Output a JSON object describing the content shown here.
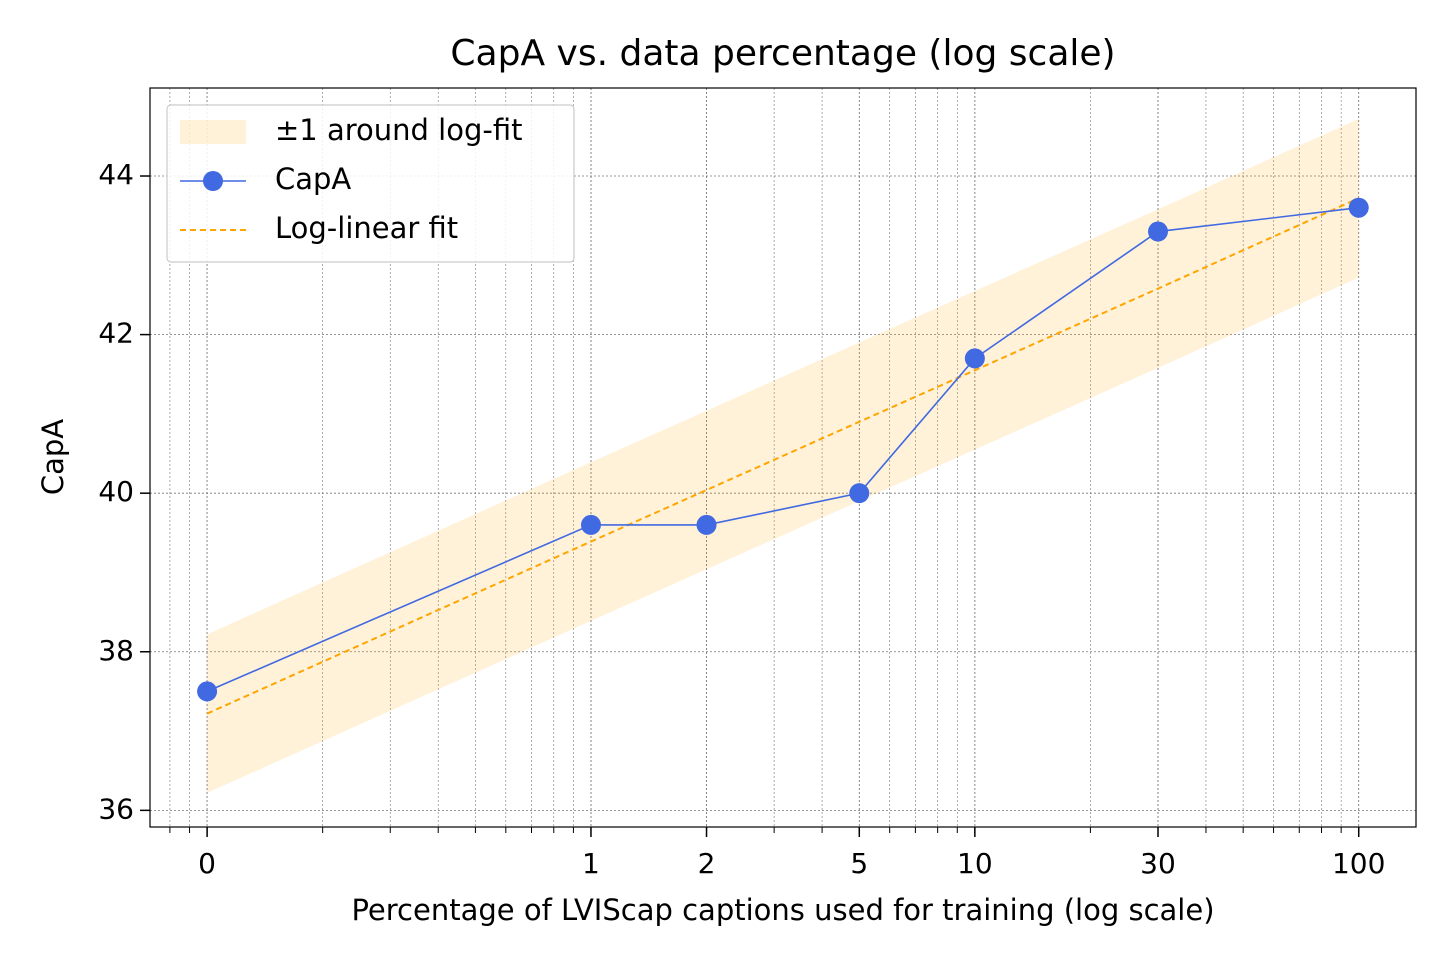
{
  "chart_data": {
    "type": "line",
    "title": "CapA vs. data percentage (log scale)",
    "xlabel": "Percentage of LVIScap captions used for training (log scale)",
    "ylabel": "CapA",
    "x": [
      0.1,
      1,
      2,
      5,
      10,
      30,
      100
    ],
    "xscale": "log",
    "xlim": [
      0.071,
      141
    ],
    "xticks": [
      {
        "value": 0.1,
        "label": "0"
      },
      1,
      2,
      5,
      10,
      30,
      100
    ],
    "ylim": [
      35.79,
      45.11
    ],
    "yticks": [
      36,
      38,
      40,
      42,
      44
    ],
    "grid": true,
    "legend": "upper left",
    "band": {
      "name": "±1 around log-fit",
      "color": "#ffa500",
      "lower": [
        36.22,
        38.39,
        39.04,
        39.9,
        40.55,
        41.58,
        42.72
      ],
      "upper": [
        38.22,
        40.39,
        41.04,
        41.9,
        42.55,
        43.58,
        44.72
      ]
    },
    "series": [
      {
        "name": "CapA",
        "color": "#4169e1",
        "marker": "circle",
        "values": [
          37.5,
          39.6,
          39.6,
          40.0,
          41.7,
          43.3,
          43.6
        ]
      },
      {
        "name": "Log-linear fit",
        "color": "#ffa500",
        "dashed": true,
        "values": [
          37.22,
          39.39,
          40.04,
          40.9,
          41.55,
          42.58,
          43.72
        ]
      }
    ]
  }
}
